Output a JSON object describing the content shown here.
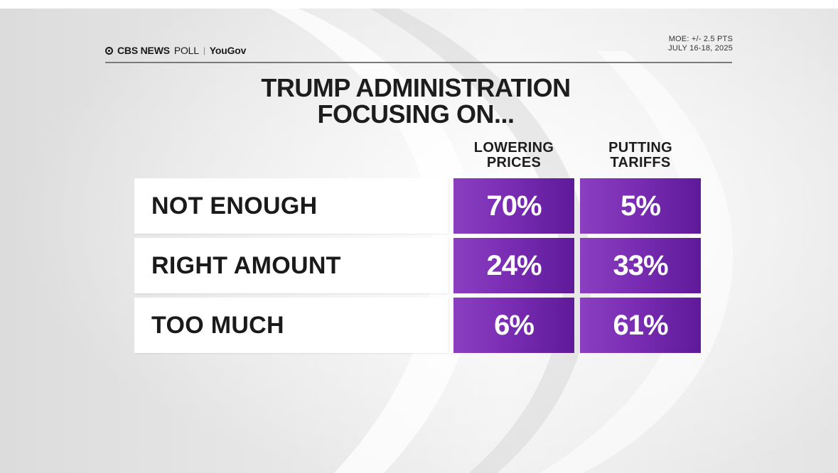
{
  "header": {
    "brand_network": "CBS NEWS",
    "brand_poll": "POLL",
    "brand_separator": "|",
    "brand_partner": "YouGov",
    "moe": "MOE: +/- 2.5 PTS",
    "dates": "JULY 16-18, 2025"
  },
  "chart_data": {
    "type": "table",
    "title_line1": "TRUMP ADMINISTRATION",
    "title_line2": "FOCUSING ON...",
    "columns": [
      {
        "line1": "LOWERING",
        "line2": "PRICES"
      },
      {
        "line1": "PUTTING",
        "line2": "TARIFFS"
      }
    ],
    "rows": [
      {
        "label": "NOT ENOUGH",
        "values": [
          "70%",
          "5%"
        ]
      },
      {
        "label": "RIGHT AMOUNT",
        "values": [
          "24%",
          "33%"
        ]
      },
      {
        "label": "TOO MUCH",
        "values": [
          "6%",
          "61%"
        ]
      }
    ],
    "series": [
      {
        "name": "LOWERING PRICES",
        "values": [
          70,
          24,
          6
        ]
      },
      {
        "name": "PUTTING TARIFFS",
        "values": [
          5,
          33,
          61
        ]
      }
    ],
    "categories": [
      "NOT ENOUGH",
      "RIGHT AMOUNT",
      "TOO MUCH"
    ],
    "unit": "%"
  },
  "colors": {
    "cell_purple": "#7a2db3",
    "title_text": "#1d1d1d"
  }
}
